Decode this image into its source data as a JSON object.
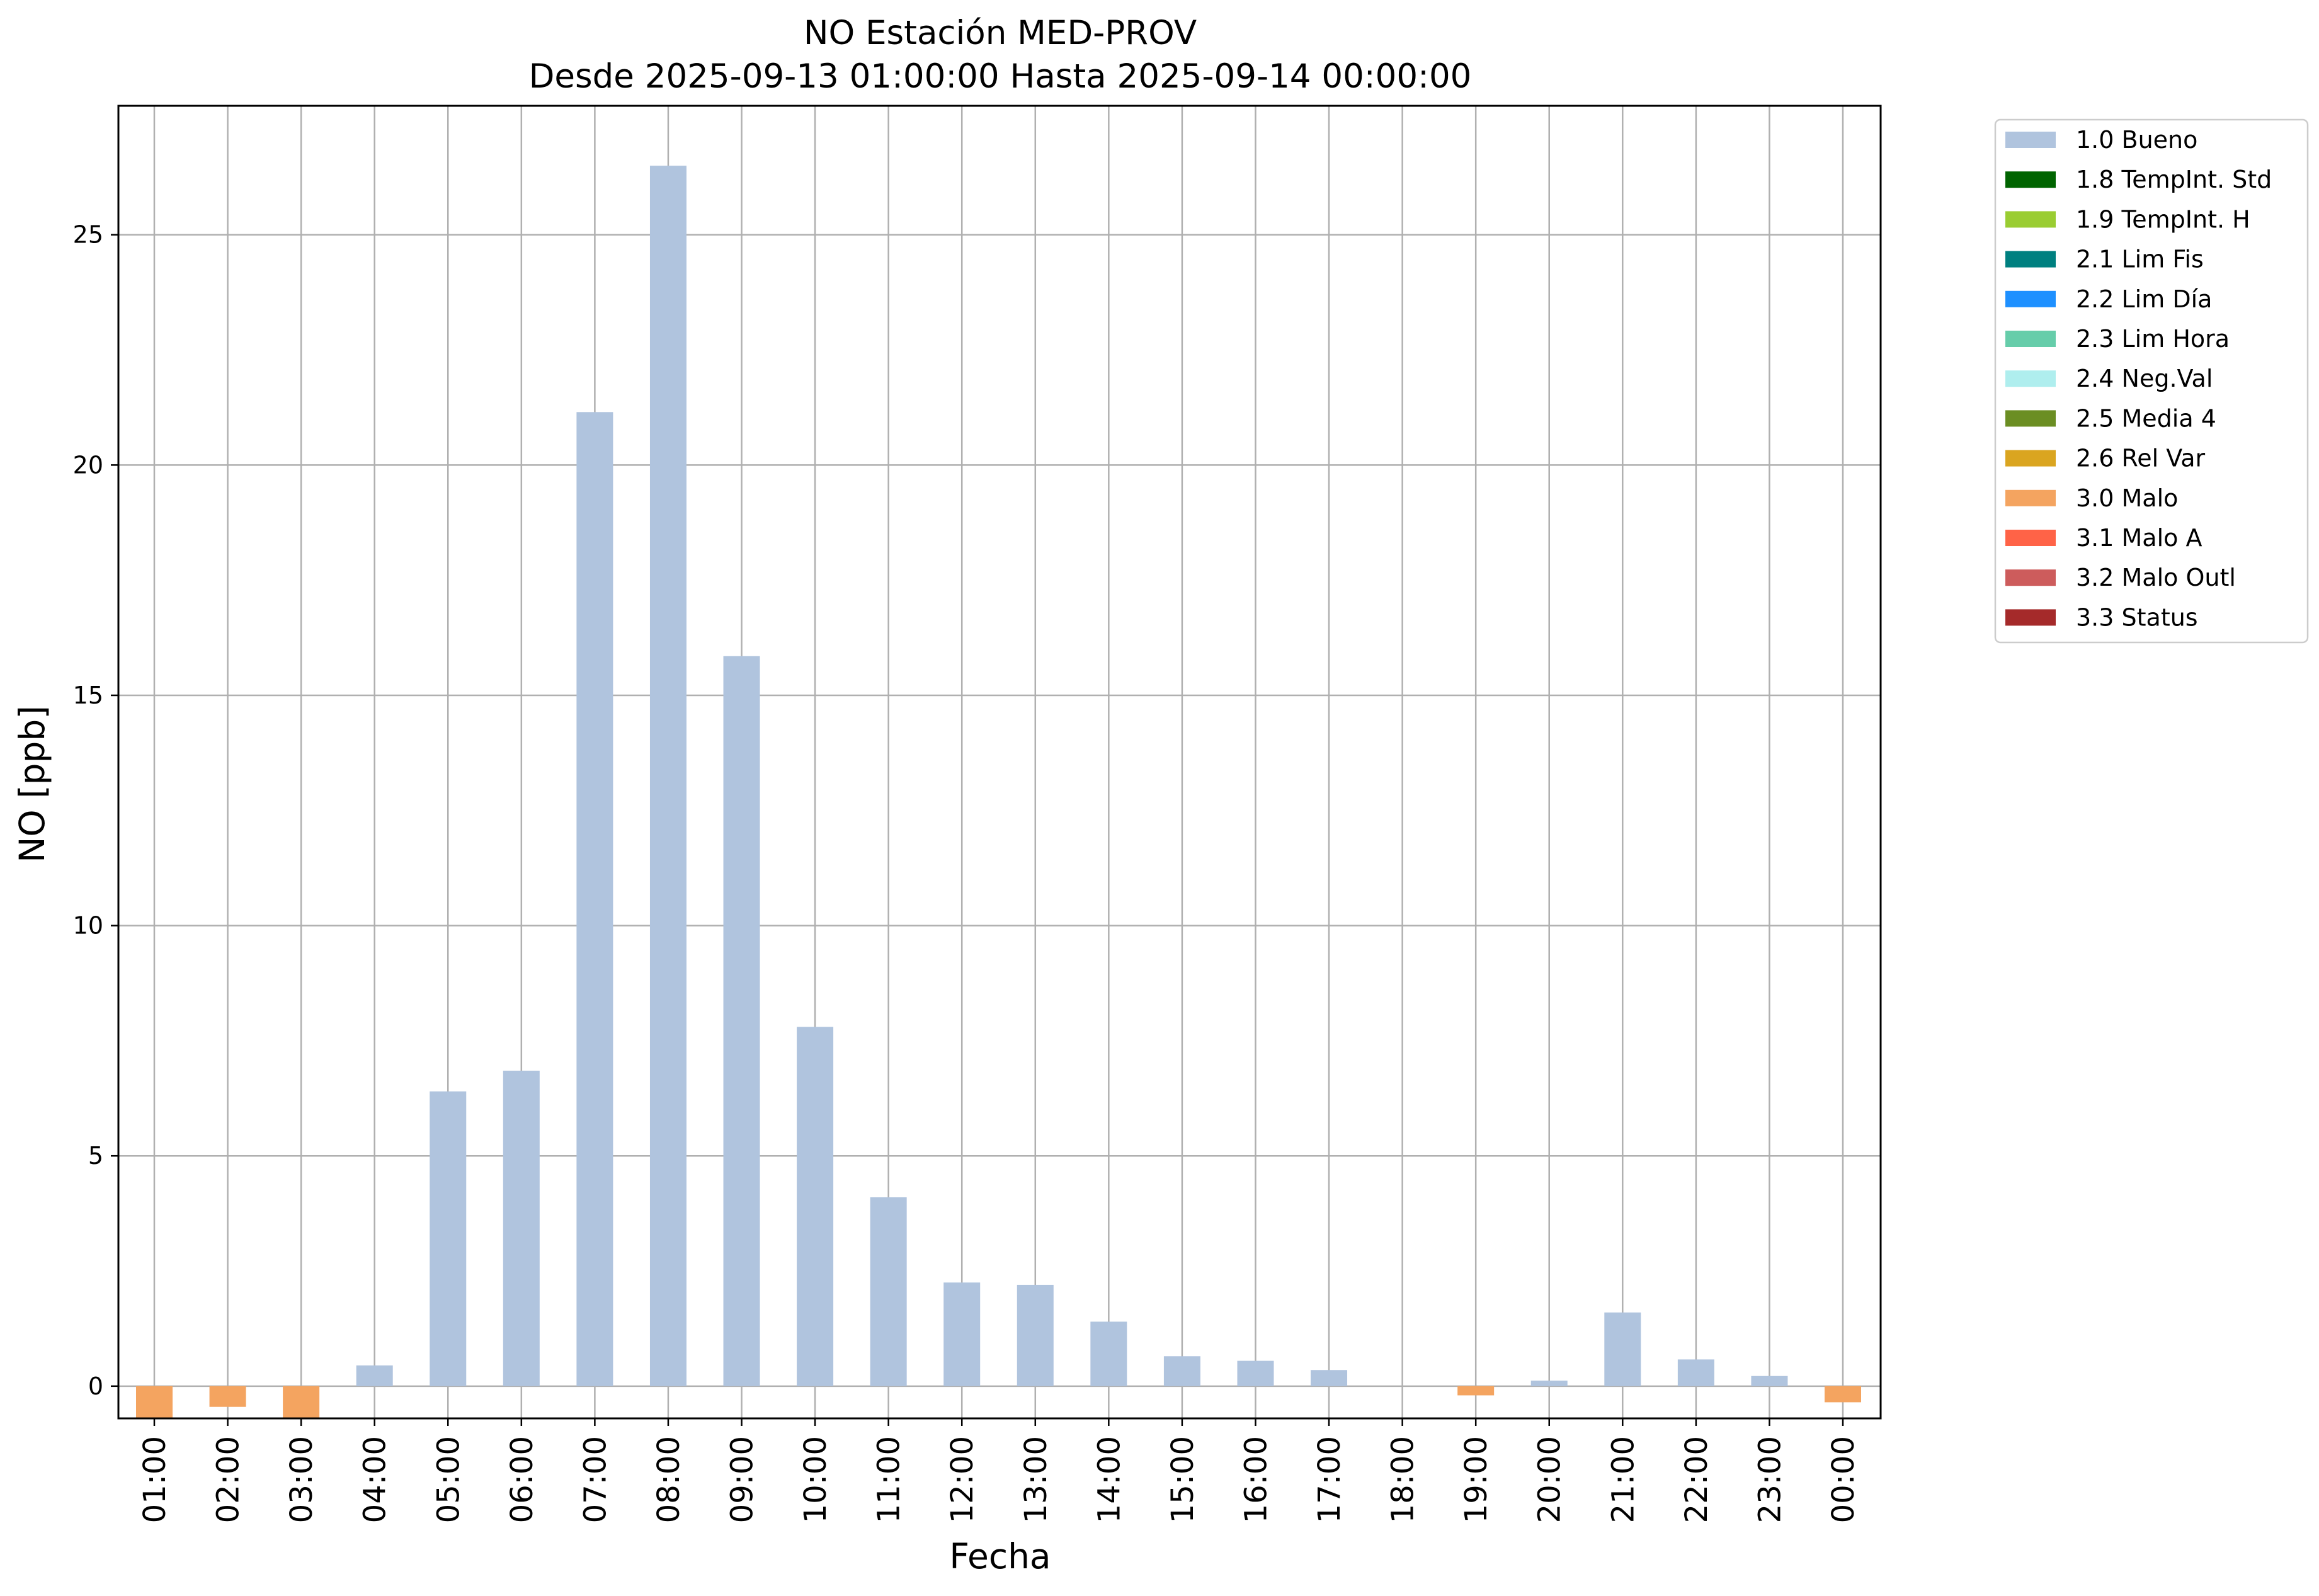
{
  "chart_data": {
    "type": "bar",
    "title": "NO Estación MED-PROV",
    "subtitle": "Desde 2025-09-13 01:00:00 Hasta 2025-09-14 00:00:00",
    "xlabel": "Fecha",
    "ylabel": "NO [ppb]",
    "ylim": [
      -0.7,
      27.8
    ],
    "yticks": [
      0,
      5,
      10,
      15,
      20,
      25
    ],
    "grid": true,
    "legend_position": "outside-top-right",
    "categories": [
      "01:00",
      "02:00",
      "03:00",
      "04:00",
      "05:00",
      "06:00",
      "07:00",
      "08:00",
      "09:00",
      "10:00",
      "11:00",
      "12:00",
      "13:00",
      "14:00",
      "15:00",
      "16:00",
      "17:00",
      "18:00",
      "19:00",
      "20:00",
      "21:00",
      "22:00",
      "23:00",
      "00:00"
    ],
    "values": [
      -0.7,
      -0.45,
      -0.7,
      0.45,
      6.4,
      6.85,
      21.15,
      26.5,
      15.85,
      7.8,
      4.1,
      2.25,
      2.2,
      1.4,
      0.65,
      0.55,
      0.35,
      0,
      -0.2,
      0.12,
      1.6,
      0.58,
      0.22,
      -0.35
    ],
    "flags": [
      "3.0 Malo",
      "3.0 Malo",
      "3.0 Malo",
      "1.0 Bueno",
      "1.0 Bueno",
      "1.0 Bueno",
      "1.0 Bueno",
      "1.0 Bueno",
      "1.0 Bueno",
      "1.0 Bueno",
      "1.0 Bueno",
      "1.0 Bueno",
      "1.0 Bueno",
      "1.0 Bueno",
      "1.0 Bueno",
      "1.0 Bueno",
      "1.0 Bueno",
      "1.0 Bueno",
      "3.0 Malo",
      "1.0 Bueno",
      "1.0 Bueno",
      "1.0 Bueno",
      "1.0 Bueno",
      "3.0 Malo"
    ],
    "legend": [
      {
        "label": "1.0 Bueno",
        "color": "#b0c4de"
      },
      {
        "label": "1.8 TempInt. Std",
        "color": "#006400"
      },
      {
        "label": "1.9 TempInt. H",
        "color": "#9acd32"
      },
      {
        "label": "2.1 Lim Fis",
        "color": "#008080"
      },
      {
        "label": "2.2 Lim Día",
        "color": "#1e90ff"
      },
      {
        "label": "2.3 Lim Hora",
        "color": "#66cdaa"
      },
      {
        "label": "2.4 Neg.Val",
        "color": "#afeeee"
      },
      {
        "label": "2.5 Media 4",
        "color": "#6b8e23"
      },
      {
        "label": "2.6 Rel Var",
        "color": "#daa520"
      },
      {
        "label": "3.0 Malo",
        "color": "#f4a460"
      },
      {
        "label": "3.1 Malo A",
        "color": "#ff6347"
      },
      {
        "label": "3.2 Malo Outl",
        "color": "#cd5c5c"
      },
      {
        "label": "3.3 Status",
        "color": "#a52a2a"
      }
    ]
  }
}
